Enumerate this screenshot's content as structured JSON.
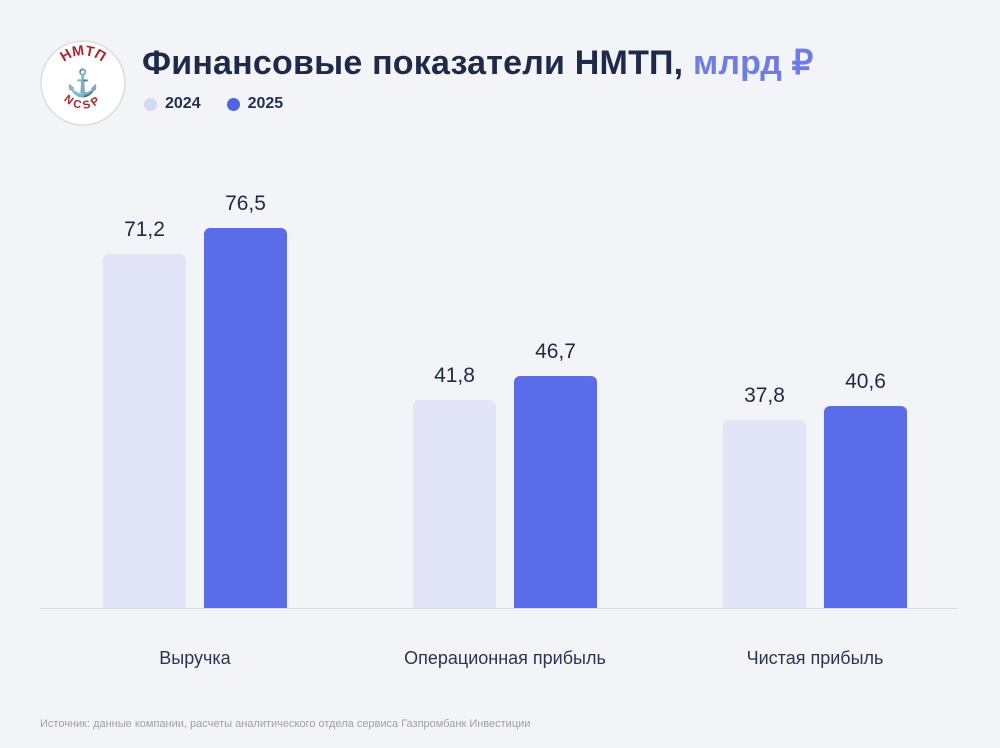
{
  "header": {
    "title_main": "Финансовые показатели НМТП,",
    "title_unit": " млрд ₽",
    "logo": {
      "top_text": "НМТП",
      "bottom_text": "NCSP",
      "anchor_icon": "⚓",
      "text_color": "#b4232d",
      "anchor_color": "#1c2b4a"
    }
  },
  "legend": [
    {
      "label": "2024",
      "color": "#d5daf3"
    },
    {
      "label": "2025",
      "color": "#4f63e4"
    }
  ],
  "chart_data": {
    "type": "bar",
    "title": "Финансовые показатели НМТП, млрд ₽",
    "categories": [
      "Выручка",
      "Операционная прибыль",
      "Чистая прибыль"
    ],
    "series": [
      {
        "name": "2024",
        "color": "#e2e5f8",
        "values": [
          71.2,
          41.8,
          37.8
        ]
      },
      {
        "name": "2025",
        "color": "#5b6ce8",
        "values": [
          76.5,
          46.7,
          40.6
        ]
      }
    ],
    "value_labels": [
      [
        "71,2",
        "41,8",
        "37,8"
      ],
      [
        "76,5",
        "46,7",
        "40,6"
      ]
    ],
    "ylim": [
      0,
      80
    ],
    "grid": false,
    "legend_position": "top-left",
    "xlabel": "",
    "ylabel": ""
  },
  "colors": {
    "background": "#f3f4f7",
    "title_navy": "#1e2a47",
    "accent_blue": "#5b6ce8",
    "light_bar": "#e2e5f8",
    "baseline": "#d9dce4"
  },
  "footer": {
    "source": "Источник: данные компании, расчеты аналитического отдела сервиса Газпромбанк Инвестиции"
  }
}
